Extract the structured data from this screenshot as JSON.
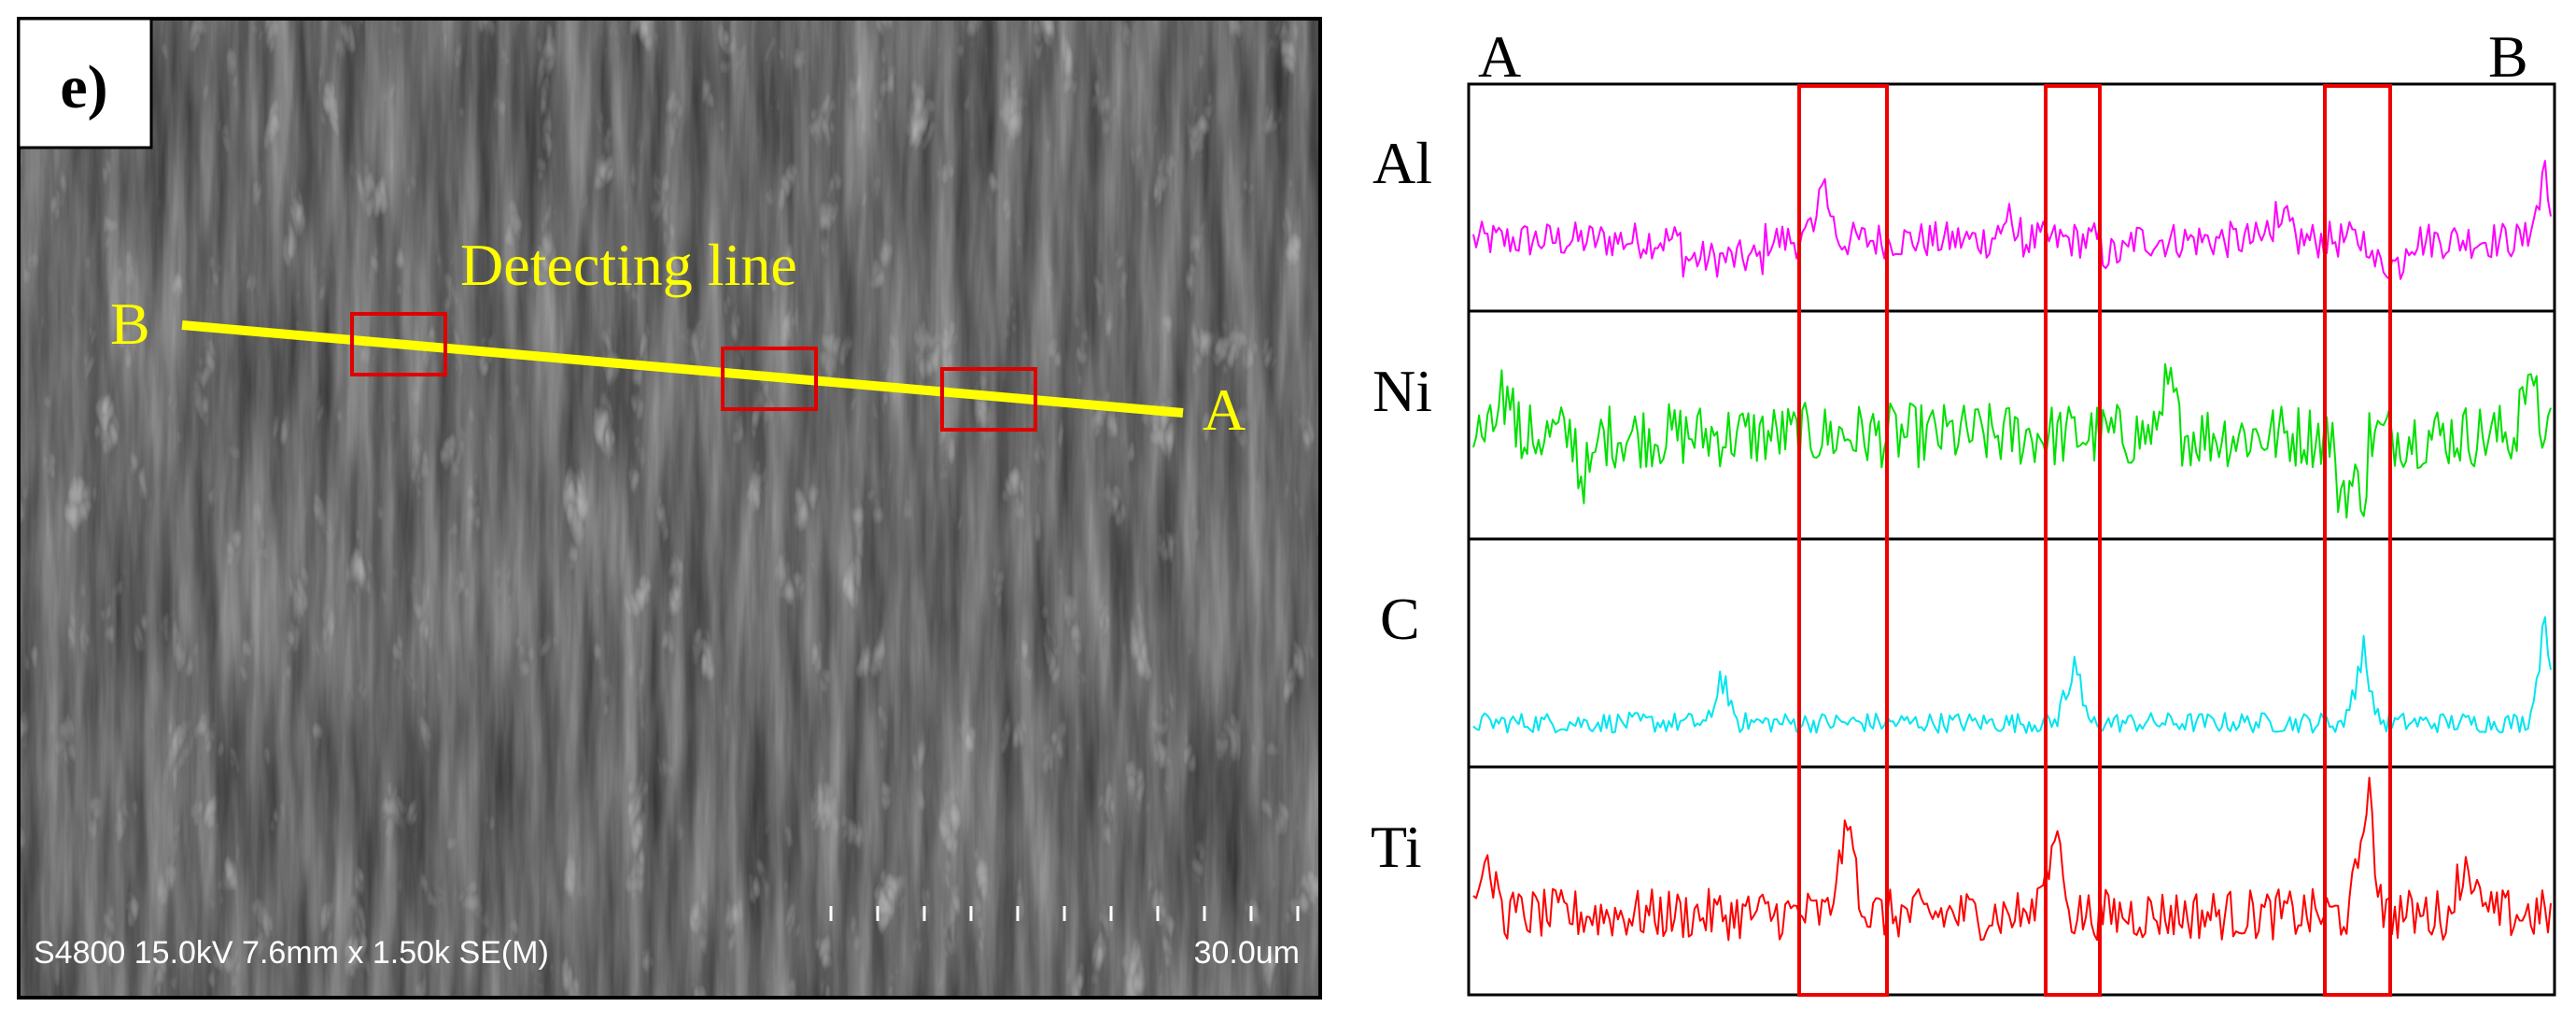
{
  "panel_label": "e)",
  "sem": {
    "line_label": "Detecting line",
    "start_point": "B",
    "end_point": "A",
    "info_bar": "S4800 15.0kV 7.6mm x 1.50k SE(M)",
    "scale_label": "30.0um",
    "line_color": "#ffff00",
    "box_color": "#e00000"
  },
  "linescan": {
    "left_label": "A",
    "right_label": "B",
    "elements": [
      {
        "name": "Al",
        "color": "#ff00ff"
      },
      {
        "name": "Ni",
        "color": "#00e000"
      },
      {
        "name": "C",
        "color": "#00e5f0"
      },
      {
        "name": "Ti",
        "color": "#ff0000"
      }
    ],
    "highlight_color": "#ee0000"
  }
}
